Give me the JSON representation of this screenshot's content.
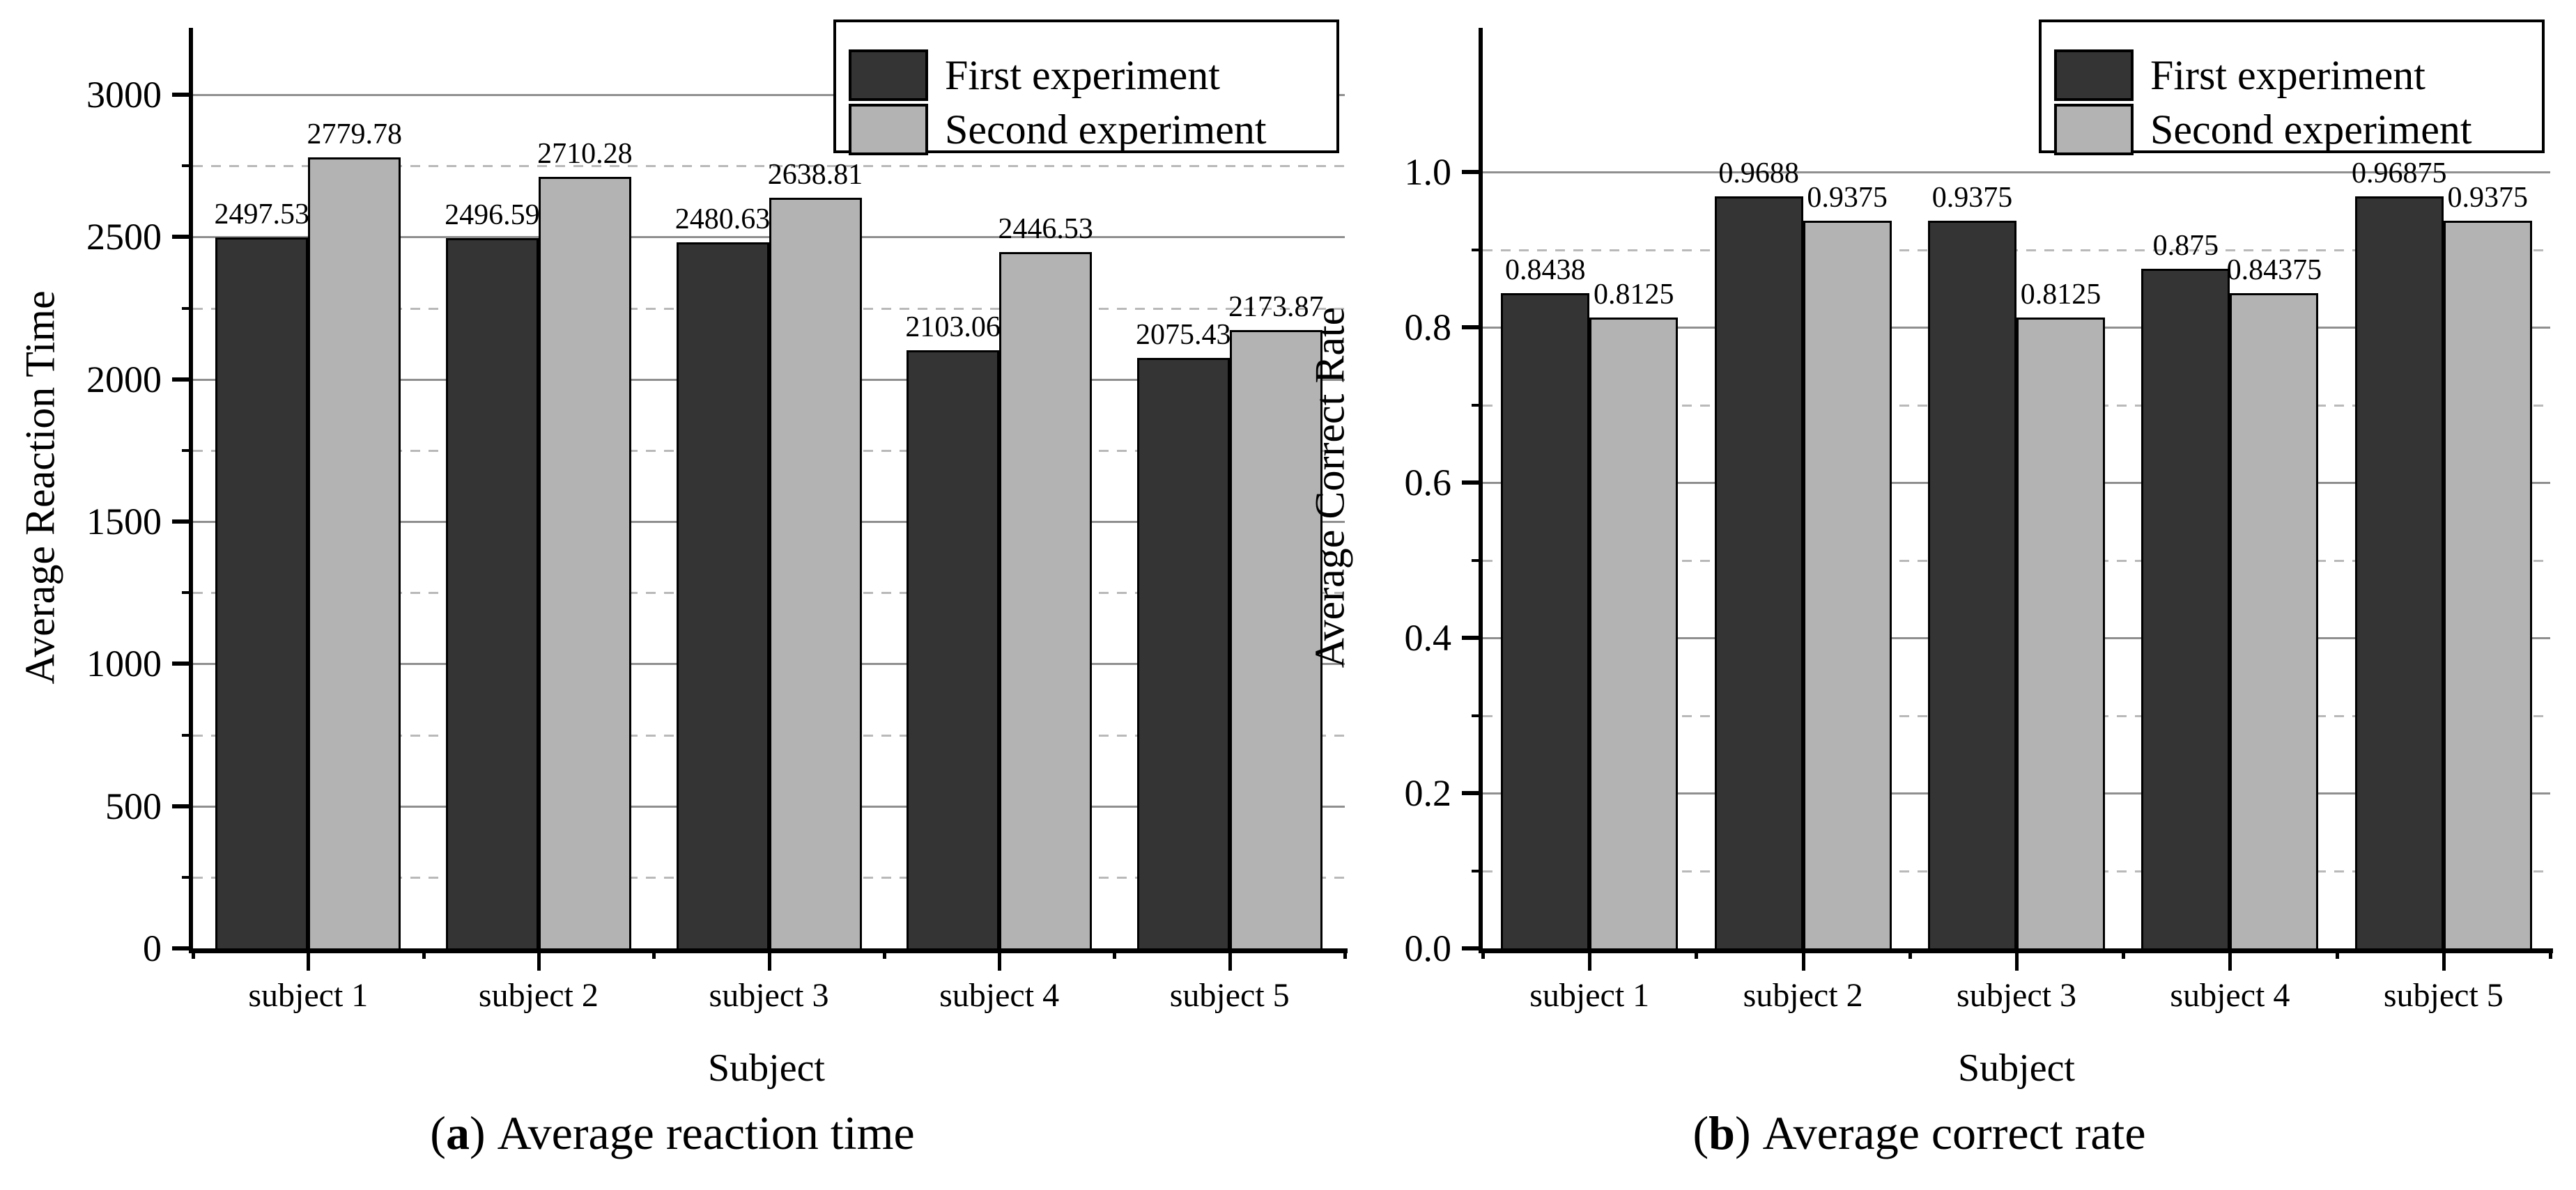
{
  "colors": {
    "first_experiment": "#343434",
    "second_experiment": "#b3b3b3",
    "bar_outline": "#000000",
    "grid_major": "#8f8f8f",
    "grid_minor": "#b9b9b9"
  },
  "chart_data": [
    {
      "type": "bar",
      "panel_label": "a",
      "caption_open": "(",
      "caption_marker": "a",
      "caption_close": ")",
      "caption_text": "Average reaction time",
      "xlabel": "Subject",
      "ylabel": "Average Reaction Time",
      "categories": [
        "subject 1",
        "subject 2",
        "subject 3",
        "subject 4",
        "subject 5"
      ],
      "series": [
        {
          "name": "First experiment",
          "color": "#343434",
          "values": [
            2497.53,
            2496.59,
            2480.63,
            2103.06,
            2075.43
          ],
          "labels": [
            "2497.53",
            "2496.59",
            "2480.63",
            "2103.06",
            "2075.43"
          ]
        },
        {
          "name": "Second experiment",
          "color": "#b3b3b3",
          "values": [
            2779.78,
            2710.28,
            2638.81,
            2446.53,
            2173.87
          ],
          "labels": [
            "2779.78",
            "2710.28",
            "2638.81",
            "2446.53",
            "2173.87"
          ]
        }
      ],
      "ylim": [
        0,
        3200
      ],
      "yticks_major": [
        0,
        500,
        1000,
        1500,
        2000,
        2500,
        3000
      ],
      "ytick_labels": [
        "0",
        "500",
        "1000",
        "1500",
        "2000",
        "2500",
        "3000"
      ],
      "yticks_minor": [
        250,
        750,
        1250,
        1750,
        2250,
        2750
      ],
      "grid": "major-solid, minor-dashed",
      "legend_position": "top-right"
    },
    {
      "type": "bar",
      "panel_label": "b",
      "caption_open": "(",
      "caption_marker": "b",
      "caption_close": ")",
      "caption_text": "Average correct rate",
      "xlabel": "Subject",
      "ylabel": "Average Correct Rate",
      "categories": [
        "subject 1",
        "subject 2",
        "subject 3",
        "subject 4",
        "subject 5"
      ],
      "series": [
        {
          "name": "First experiment",
          "color": "#343434",
          "values": [
            0.8438,
            0.9688,
            0.9375,
            0.875,
            0.96875
          ],
          "labels": [
            "0.8438",
            "0.9688",
            "0.9375",
            "0.875",
            "0.96875"
          ]
        },
        {
          "name": "Second experiment",
          "color": "#b3b3b3",
          "values": [
            0.8125,
            0.9375,
            0.8125,
            0.84375,
            0.9375
          ],
          "labels": [
            "0.8125",
            "0.9375",
            "0.8125",
            "0.84375",
            "0.9375"
          ]
        }
      ],
      "ylim": [
        0.0,
        1.19
      ],
      "yticks_major": [
        0.0,
        0.2,
        0.4,
        0.6,
        0.8,
        1.0
      ],
      "ytick_labels": [
        "0.0",
        "0.2",
        "0.4",
        "0.6",
        "0.8",
        "1.0"
      ],
      "yticks_minor": [
        0.1,
        0.3,
        0.5,
        0.7,
        0.9
      ],
      "grid": "major-solid, minor-dashed",
      "legend_position": "top-right"
    }
  ]
}
